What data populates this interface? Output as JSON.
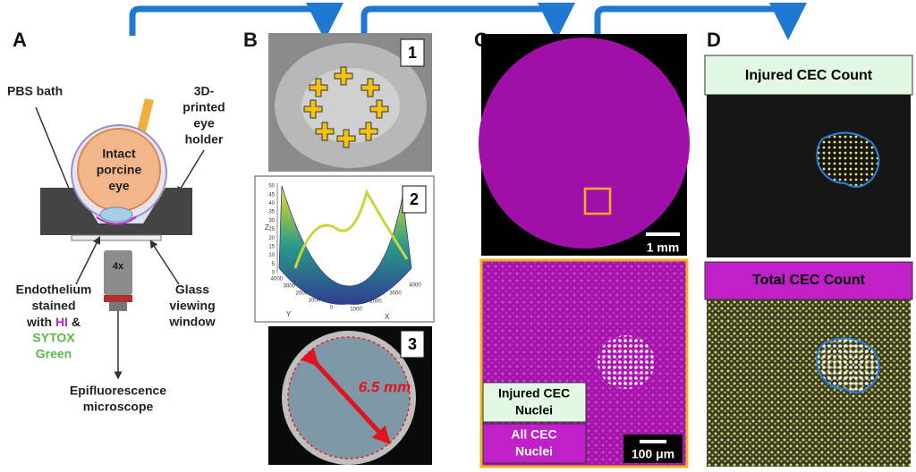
{
  "panels": {
    "a": "A",
    "b": "B",
    "c": "C",
    "d": "D"
  },
  "schematic": {
    "pbs_bath": "PBS bath",
    "holder": [
      "3D-",
      "printed",
      "eye",
      "holder"
    ],
    "eye": [
      "Intact",
      "porcine",
      "eye"
    ],
    "endothelium": {
      "line1": "Endothelium",
      "line2": "stained",
      "with": "with",
      "hi": "HI",
      "amp": "&",
      "sytox": "SYTOX",
      "green": "Green"
    },
    "glass": [
      "Glass",
      "viewing",
      "window"
    ],
    "objective": "4x",
    "microscope": [
      "Epifluorescence",
      "microscope"
    ]
  },
  "panel_b": {
    "insets": [
      "1",
      "2",
      "3"
    ],
    "plot": {
      "z_label": "Z",
      "y_label": "Y",
      "x_label": "X",
      "z_ticks": [
        0,
        5,
        10,
        15,
        20,
        25,
        30,
        35,
        40,
        45,
        50
      ],
      "y_ticks": [
        0,
        1000,
        2000,
        3000,
        4000
      ],
      "x_ticks": [
        1000,
        2000,
        3000,
        4000
      ]
    },
    "diameter": "6.5 mm"
  },
  "panel_c": {
    "scale_top": "1 mm",
    "scale_bottom": "100 μm",
    "legend_injured": [
      "Injured CEC",
      "Nuclei"
    ],
    "legend_all": [
      "All CEC",
      "Nuclei"
    ]
  },
  "panel_d": {
    "injured": "Injured CEC Count",
    "total": "Total CEC Count"
  }
}
